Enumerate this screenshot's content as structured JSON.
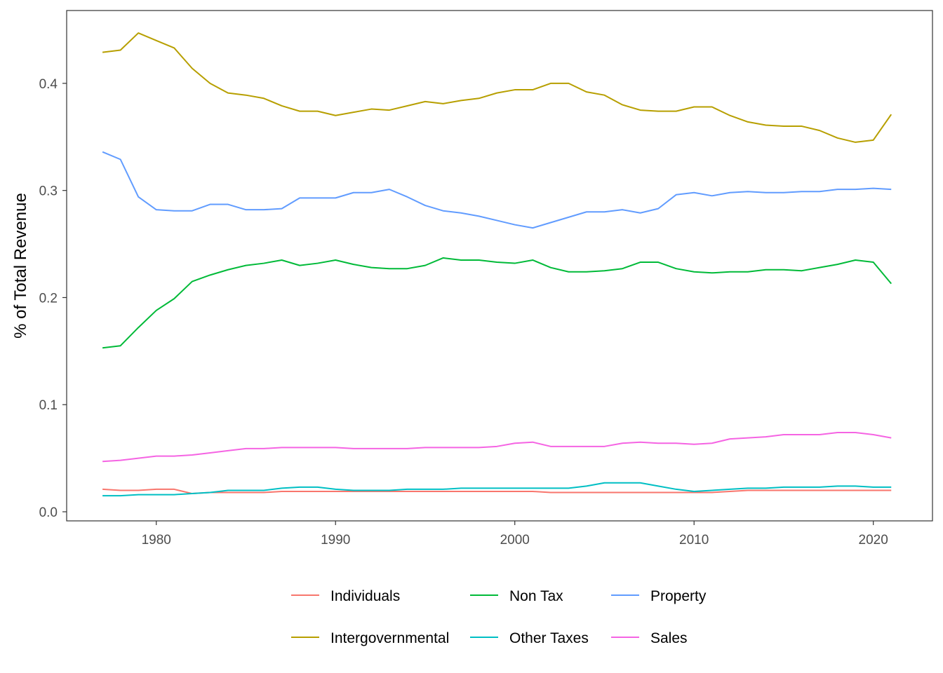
{
  "chart_data": {
    "type": "line",
    "title": "",
    "xlabel": "",
    "ylabel": "% of Total Revenue",
    "xlim": [
      1975,
      2023.3
    ],
    "ylim": [
      -0.0085,
      0.468
    ],
    "x_ticks": [
      1980,
      1990,
      2000,
      2010,
      2020
    ],
    "x_tick_labels": [
      "1980",
      "1990",
      "2000",
      "2010",
      "2020"
    ],
    "y_ticks": [
      0.0,
      0.1,
      0.2,
      0.3,
      0.4
    ],
    "y_tick_labels": [
      "0.0",
      "0.1",
      "0.2",
      "0.3",
      "0.4"
    ],
    "grid": false,
    "legend_position": "bottom",
    "x": [
      1977,
      1978,
      1979,
      1980,
      1981,
      1982,
      1983,
      1984,
      1985,
      1986,
      1987,
      1988,
      1989,
      1990,
      1991,
      1992,
      1993,
      1994,
      1995,
      1996,
      1997,
      1998,
      1999,
      2000,
      2001,
      2002,
      2003,
      2004,
      2005,
      2006,
      2007,
      2008,
      2009,
      2010,
      2011,
      2012,
      2013,
      2014,
      2015,
      2016,
      2017,
      2018,
      2019,
      2020,
      2021
    ],
    "series": [
      {
        "name": "Individuals",
        "color": "#F8766D",
        "values": [
          0.021,
          0.02,
          0.02,
          0.021,
          0.021,
          0.017,
          0.018,
          0.018,
          0.018,
          0.018,
          0.019,
          0.019,
          0.019,
          0.019,
          0.019,
          0.019,
          0.019,
          0.019,
          0.019,
          0.019,
          0.019,
          0.019,
          0.019,
          0.019,
          0.019,
          0.018,
          0.018,
          0.018,
          0.018,
          0.018,
          0.018,
          0.018,
          0.018,
          0.018,
          0.018,
          0.019,
          0.02,
          0.02,
          0.02,
          0.02,
          0.02,
          0.02,
          0.02,
          0.02,
          0.02
        ]
      },
      {
        "name": "Intergovernmental",
        "color": "#B79F00",
        "values": [
          0.429,
          0.431,
          0.447,
          0.44,
          0.433,
          0.414,
          0.4,
          0.391,
          0.389,
          0.386,
          0.379,
          0.374,
          0.374,
          0.37,
          0.373,
          0.376,
          0.375,
          0.379,
          0.383,
          0.381,
          0.384,
          0.386,
          0.391,
          0.394,
          0.394,
          0.4,
          0.4,
          0.392,
          0.389,
          0.38,
          0.375,
          0.374,
          0.374,
          0.378,
          0.378,
          0.37,
          0.364,
          0.361,
          0.36,
          0.36,
          0.356,
          0.349,
          0.345,
          0.347,
          0.371
        ]
      },
      {
        "name": "Non Tax",
        "color": "#00BA38",
        "values": [
          0.153,
          0.155,
          0.172,
          0.188,
          0.199,
          0.215,
          0.221,
          0.226,
          0.23,
          0.232,
          0.235,
          0.23,
          0.232,
          0.235,
          0.231,
          0.228,
          0.227,
          0.227,
          0.23,
          0.237,
          0.235,
          0.235,
          0.233,
          0.232,
          0.235,
          0.228,
          0.224,
          0.224,
          0.225,
          0.227,
          0.233,
          0.233,
          0.227,
          0.224,
          0.223,
          0.224,
          0.224,
          0.226,
          0.226,
          0.225,
          0.228,
          0.231,
          0.235,
          0.233,
          0.213
        ]
      },
      {
        "name": "Other Taxes",
        "color": "#00BFC4",
        "values": [
          0.015,
          0.015,
          0.016,
          0.016,
          0.016,
          0.017,
          0.018,
          0.02,
          0.02,
          0.02,
          0.022,
          0.023,
          0.023,
          0.021,
          0.02,
          0.02,
          0.02,
          0.021,
          0.021,
          0.021,
          0.022,
          0.022,
          0.022,
          0.022,
          0.022,
          0.022,
          0.022,
          0.024,
          0.027,
          0.027,
          0.027,
          0.024,
          0.021,
          0.019,
          0.02,
          0.021,
          0.022,
          0.022,
          0.023,
          0.023,
          0.023,
          0.024,
          0.024,
          0.023,
          0.023
        ]
      },
      {
        "name": "Property",
        "color": "#619CFF",
        "values": [
          0.336,
          0.329,
          0.294,
          0.282,
          0.281,
          0.281,
          0.287,
          0.287,
          0.282,
          0.282,
          0.283,
          0.293,
          0.293,
          0.293,
          0.298,
          0.298,
          0.301,
          0.294,
          0.286,
          0.281,
          0.279,
          0.276,
          0.272,
          0.268,
          0.265,
          0.27,
          0.275,
          0.28,
          0.28,
          0.282,
          0.279,
          0.283,
          0.296,
          0.298,
          0.295,
          0.298,
          0.299,
          0.298,
          0.298,
          0.299,
          0.299,
          0.301,
          0.301,
          0.302,
          0.301
        ]
      },
      {
        "name": "Sales",
        "color": "#F564E3",
        "values": [
          0.047,
          0.048,
          0.05,
          0.052,
          0.052,
          0.053,
          0.055,
          0.057,
          0.059,
          0.059,
          0.06,
          0.06,
          0.06,
          0.06,
          0.059,
          0.059,
          0.059,
          0.059,
          0.06,
          0.06,
          0.06,
          0.06,
          0.061,
          0.064,
          0.065,
          0.061,
          0.061,
          0.061,
          0.061,
          0.064,
          0.065,
          0.064,
          0.064,
          0.063,
          0.064,
          0.068,
          0.069,
          0.07,
          0.072,
          0.072,
          0.072,
          0.074,
          0.074,
          0.072,
          0.069
        ]
      }
    ],
    "legend_layout": {
      "rows": [
        [
          "Individuals",
          "Non Tax",
          "Property"
        ],
        [
          "Intergovernmental",
          "Other Taxes",
          "Sales"
        ]
      ]
    }
  }
}
